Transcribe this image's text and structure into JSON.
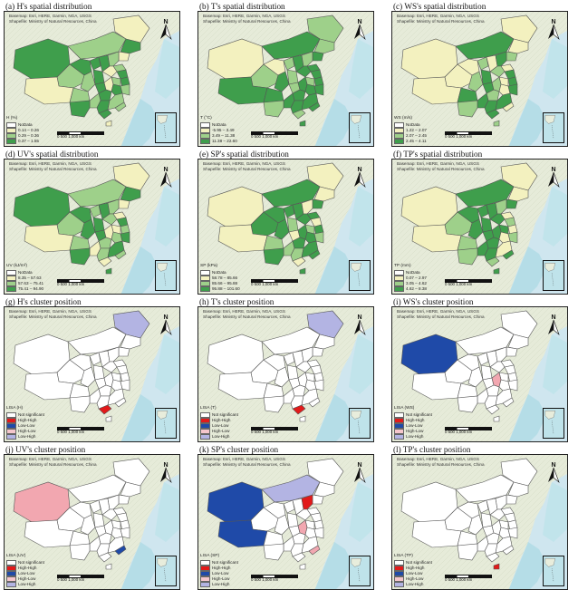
{
  "credit": [
    "Basemap: Esri, HERE, Garmin, NGA, USGS",
    "Shapefile: Ministry of Natural Resources, China"
  ],
  "scale": "0   500  1,000 km",
  "north_label": "N",
  "colors": {
    "low": "#f3f1bf",
    "mid": "#9ed08a",
    "high": "#3f9e4c",
    "hh": "#e21a1a",
    "lh": "#f2a7b0",
    "hl": "#f5c6cc",
    "ll": "#1f4aa8",
    "lowhigh": "#b3b4e3",
    "ocean": "#cfe6ef",
    "land": "#e7ecdc"
  },
  "panels": [
    {
      "title": "(a) H's spatial distribution",
      "type": "dist",
      "legend_title": "H (%)",
      "legend": [
        "NoData",
        "0.14 – 0.26",
        "0.29 – 0.36",
        "0.37 – 1.55"
      ],
      "fills": [
        "high",
        "low",
        "mid",
        "high",
        "low",
        "mid",
        "low",
        "high",
        "high",
        "high",
        "mid",
        "mid",
        "high",
        "low",
        "high",
        "mid",
        "high",
        "mid",
        "mid",
        "high",
        "low",
        "high",
        "mid",
        "high",
        "mid",
        "high",
        "high",
        "mid",
        "mid",
        "high",
        "low"
      ]
    },
    {
      "title": "(b) T's spatial distribution",
      "type": "dist",
      "legend_title": "T (°C)",
      "legend": [
        "NoData",
        "-5.95 – 3.49",
        "3.49 – 11.38",
        "11.38 – 22.60"
      ],
      "fills": [
        "low",
        "mid",
        "high",
        "mid",
        "high",
        "mid",
        "high",
        "low",
        "mid",
        "high",
        "mid",
        "high",
        "mid",
        "high",
        "high",
        "mid",
        "high",
        "high",
        "high",
        "mid",
        "high",
        "high",
        "high",
        "high",
        "high",
        "mid",
        "high",
        "high",
        "high",
        "mid",
        "high"
      ]
    },
    {
      "title": "(c) WS's spatial distribution",
      "type": "dist",
      "legend_title": "WS (m/s)",
      "legend": [
        "NoData",
        "1.22 – 2.07",
        "2.07 – 2.45",
        "2.45 – 4.11"
      ],
      "fills": [
        "low",
        "low",
        "high",
        "low",
        "mid",
        "low",
        "low",
        "low",
        "mid",
        "low",
        "high",
        "low",
        "high",
        "mid",
        "high",
        "low",
        "high",
        "mid",
        "high",
        "high",
        "mid",
        "low",
        "high",
        "mid",
        "high",
        "mid",
        "high",
        "high",
        "low",
        "high",
        "mid"
      ]
    },
    {
      "title": "(d) UV's spatial distribution",
      "type": "dist",
      "legend_title": "UV (kJ/m²)",
      "legend": [
        "NoData",
        "8.35 – 57.63",
        "57.63 – 75.41",
        "75.41 – 94.90"
      ],
      "fills": [
        "high",
        "low",
        "mid",
        "high",
        "low",
        "mid",
        "low",
        "high",
        "mid",
        "high",
        "mid",
        "low",
        "high",
        "mid",
        "high",
        "low",
        "mid",
        "high",
        "mid",
        "high",
        "low",
        "mid",
        "high",
        "mid",
        "low",
        "high",
        "mid",
        "high",
        "mid",
        "low",
        "high"
      ]
    },
    {
      "title": "(e) SP's spatial distribution",
      "type": "dist",
      "legend_title": "SP (kPa)",
      "legend": [
        "NoData",
        "58.78 – 85.66",
        "85.66 – 95.88",
        "95.88 – 101.60"
      ],
      "fills": [
        "low",
        "low",
        "high",
        "low",
        "high",
        "high",
        "low",
        "high",
        "high",
        "high",
        "low",
        "high",
        "mid",
        "high",
        "low",
        "mid",
        "high",
        "high",
        "mid",
        "low",
        "high",
        "high",
        "mid",
        "high",
        "mid",
        "high",
        "mid",
        "high",
        "high",
        "low",
        "high"
      ]
    },
    {
      "title": "(f) TP's spatial distribution",
      "type": "dist",
      "legend_title": "TP (mm)",
      "legend": [
        "NoData",
        "0.07 – 2.97",
        "3.05 – 4.62",
        "4.62 – 8.38"
      ],
      "fills": [
        "low",
        "low",
        "high",
        "low",
        "high",
        "mid",
        "low",
        "high",
        "high",
        "high",
        "mid",
        "low",
        "high",
        "high",
        "mid",
        "high",
        "low",
        "high",
        "mid",
        "high",
        "high",
        "low",
        "mid",
        "high",
        "high",
        "mid",
        "high",
        "low",
        "high",
        "mid",
        "high"
      ]
    },
    {
      "title": "(g) H's cluster position",
      "type": "lisa",
      "legend_title": "LISA (H)",
      "legend": [
        "Not significant",
        "High-High",
        "Low-Low",
        "High-Low",
        "Low-High"
      ],
      "clusters": {
        "29": "hh",
        "1": "lowhigh"
      }
    },
    {
      "title": "(h) T's cluster position",
      "type": "lisa",
      "legend_title": "LISA (T)",
      "legend": [
        "Not significant",
        "High-High",
        "Low-Low",
        "High-Low",
        "Low-High"
      ],
      "clusters": {
        "29": "hh",
        "1": "lowhigh"
      }
    },
    {
      "title": "(i) WS's cluster position",
      "type": "lisa",
      "legend_title": "LISA (WS)",
      "legend": [
        "Not significant",
        "High-High",
        "Low-Low",
        "High-Low",
        "Low-High"
      ],
      "clusters": {
        "0": "ll",
        "20": "lh"
      }
    },
    {
      "title": "(j) UV's cluster position",
      "type": "lisa",
      "legend_title": "LISA (UV)",
      "legend": [
        "Not significant",
        "High-High",
        "Low-Low",
        "High-Low",
        "Low-High"
      ],
      "clusters": {
        "0": "lh",
        "28": "ll"
      }
    },
    {
      "title": "(k) SP's cluster position",
      "type": "lisa",
      "legend_title": "LISA (SP)",
      "legend": [
        "Not significant",
        "High-High",
        "Low-Low",
        "High-Low",
        "Low-High"
      ],
      "clusters": {
        "0": "ll",
        "6": "ll",
        "10": "hh",
        "20": "lh",
        "28": "lh",
        "2": "lowhigh"
      }
    },
    {
      "title": "(l) TP's cluster position",
      "type": "lisa",
      "legend_title": "LISA (TP)",
      "legend": [
        "Not significant",
        "High-High",
        "Low-Low",
        "High-Low",
        "Low-High"
      ],
      "clusters": {
        "30": "hh"
      }
    }
  ]
}
